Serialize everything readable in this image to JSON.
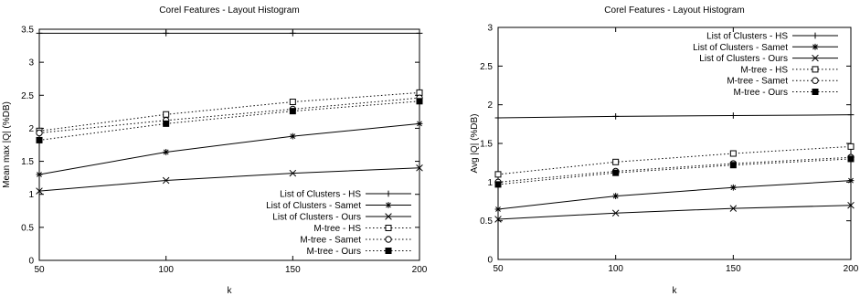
{
  "chart_data": [
    {
      "type": "line",
      "title": "Corel Features - Layout Histogram",
      "xlabel": "k",
      "ylabel": "Mean max |Q| (%DB)",
      "x": [
        50,
        100,
        150,
        200
      ],
      "xticks": [
        "50",
        "100",
        "150",
        "200"
      ],
      "xlim": [
        50,
        200
      ],
      "ylim": [
        0,
        3.5
      ],
      "yticks": [
        "0",
        "0.5",
        "1",
        "1.5",
        "2",
        "2.5",
        "3",
        "3.5"
      ],
      "grid": false,
      "legend_position": "bottom-right",
      "series": [
        {
          "name": "List of Clusters - HS",
          "values": [
            3.44,
            3.44,
            3.44,
            3.44
          ],
          "marker": "plus",
          "dash": "solid"
        },
        {
          "name": "List of Clusters - Samet",
          "values": [
            1.3,
            1.64,
            1.88,
            2.07
          ],
          "marker": "star",
          "dash": "solid"
        },
        {
          "name": "List of Clusters - Ours",
          "values": [
            1.05,
            1.21,
            1.32,
            1.4
          ],
          "marker": "x",
          "dash": "solid"
        },
        {
          "name": "M-tree - HS",
          "values": [
            1.96,
            2.21,
            2.4,
            2.54
          ],
          "marker": "open-square",
          "dash": "dotted"
        },
        {
          "name": "M-tree - Samet",
          "values": [
            1.93,
            2.12,
            2.29,
            2.46
          ],
          "marker": "open-circle",
          "dash": "dotted"
        },
        {
          "name": "M-tree - Ours",
          "values": [
            1.82,
            2.07,
            2.26,
            2.41
          ],
          "marker": "filled-square",
          "dash": "dotted"
        }
      ]
    },
    {
      "type": "line",
      "title": "Corel Features - Layout Histogram",
      "xlabel": "k",
      "ylabel": "Avg |Q| (%DB)",
      "x": [
        50,
        100,
        150,
        200
      ],
      "xticks": [
        "50",
        "100",
        "150",
        "200"
      ],
      "xlim": [
        50,
        200
      ],
      "ylim": [
        0,
        3
      ],
      "yticks": [
        "0",
        "0.5",
        "1",
        "1.5",
        "2",
        "2.5",
        "3"
      ],
      "grid": false,
      "legend_position": "top-right",
      "series": [
        {
          "name": "List of Clusters - HS",
          "values": [
            1.83,
            1.85,
            1.86,
            1.87
          ],
          "marker": "plus",
          "dash": "solid"
        },
        {
          "name": "List of Clusters - Samet",
          "values": [
            0.65,
            0.82,
            0.93,
            1.02
          ],
          "marker": "star",
          "dash": "solid"
        },
        {
          "name": "List of Clusters - Ours",
          "values": [
            0.52,
            0.6,
            0.66,
            0.7
          ],
          "marker": "x",
          "dash": "solid"
        },
        {
          "name": "M-tree - HS",
          "values": [
            1.1,
            1.26,
            1.37,
            1.46
          ],
          "marker": "open-square",
          "dash": "dotted"
        },
        {
          "name": "M-tree - Samet",
          "values": [
            1.0,
            1.14,
            1.24,
            1.32
          ],
          "marker": "open-circle",
          "dash": "dotted"
        },
        {
          "name": "M-tree - Ours",
          "values": [
            0.97,
            1.12,
            1.22,
            1.3
          ],
          "marker": "filled-square",
          "dash": "dotted"
        }
      ]
    }
  ]
}
